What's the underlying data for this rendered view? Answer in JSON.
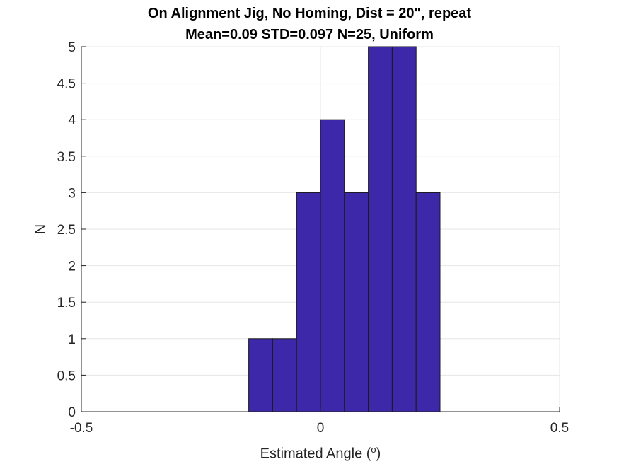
{
  "chart_data": {
    "type": "bar",
    "title": "On Alignment Jig, No Homing, Dist = 20\", repeat",
    "subtitle": "Mean=0.09 STD=0.097 N=25, Uniform",
    "xlabel_prefix": "Estimated Angle (",
    "xlabel_sup": "o",
    "xlabel_suffix": ")",
    "ylabel": "N",
    "xlim": [
      -0.5,
      0.5
    ],
    "ylim": [
      0,
      5
    ],
    "xticks": [
      -0.5,
      0,
      0.5
    ],
    "xtick_labels": [
      "-0.5",
      "0",
      "0.5"
    ],
    "yticks": [
      0,
      0.5,
      1,
      1.5,
      2,
      2.5,
      3,
      3.5,
      4,
      4.5,
      5
    ],
    "ytick_labels": [
      "0",
      "0.5",
      "1",
      "1.5",
      "2",
      "2.5",
      "3",
      "3.5",
      "4",
      "4.5",
      "5"
    ],
    "bin_width": 0.05,
    "bins": [
      {
        "start": -0.15,
        "end": -0.1,
        "count": 1
      },
      {
        "start": -0.1,
        "end": -0.05,
        "count": 1
      },
      {
        "start": -0.05,
        "end": 0.0,
        "count": 3
      },
      {
        "start": 0.0,
        "end": 0.05,
        "count": 4
      },
      {
        "start": 0.05,
        "end": 0.1,
        "count": 3
      },
      {
        "start": 0.1,
        "end": 0.15,
        "count": 5
      },
      {
        "start": 0.15,
        "end": 0.2,
        "count": 5
      },
      {
        "start": 0.2,
        "end": 0.25,
        "count": 3
      }
    ],
    "grid": true,
    "bar_color": "#3c28a8",
    "bar_edge_color": "#1a1a1a"
  }
}
